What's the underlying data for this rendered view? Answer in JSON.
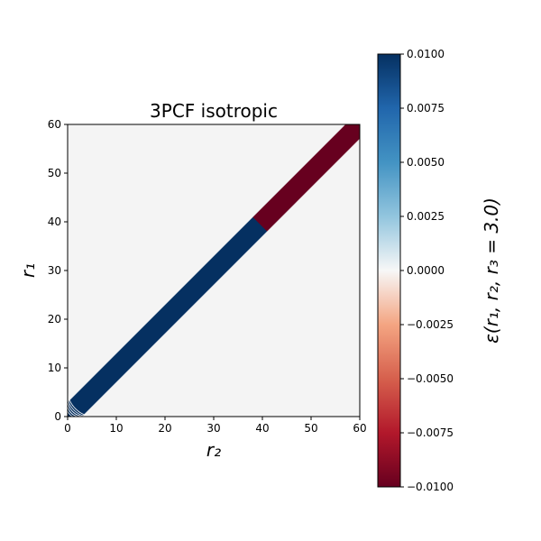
{
  "chart_data": {
    "type": "heatmap",
    "title": "3PCF isotropic",
    "xlabel": "r₂",
    "ylabel": "r₁",
    "xlim": [
      0,
      60
    ],
    "ylim": [
      0,
      60
    ],
    "x_ticks": [
      "0",
      "10",
      "20",
      "30",
      "40",
      "50",
      "60"
    ],
    "y_ticks": [
      "0",
      "10",
      "20",
      "30",
      "40",
      "50",
      "60"
    ],
    "colorbar": {
      "label": "ε(r₁, r₂, r₃ = 3.0)",
      "range": [
        -0.01,
        0.01
      ],
      "colormap": "RdBu",
      "ticks": [
        "0.0100",
        "0.0075",
        "0.0050",
        "0.0025",
        "0.0000",
        "−0.0025",
        "−0.0050",
        "−0.0075",
        "−0.0100"
      ]
    },
    "regions": [
      {
        "value": 0.01,
        "description": "diagonal band |r1 - r2| < 3",
        "r2_range": [
          0,
          44
        ]
      },
      {
        "value": -0.01,
        "description": "diagonal band |r1 - r2| < 3",
        "r2_range": [
          41,
          60
        ]
      },
      {
        "value": 0.0,
        "description": "off-diagonal background"
      }
    ],
    "colors": {
      "background": "#f4f4f4",
      "positive": "#053061",
      "negative": "#67001f",
      "contour": "#ffffff"
    },
    "grid": false
  }
}
